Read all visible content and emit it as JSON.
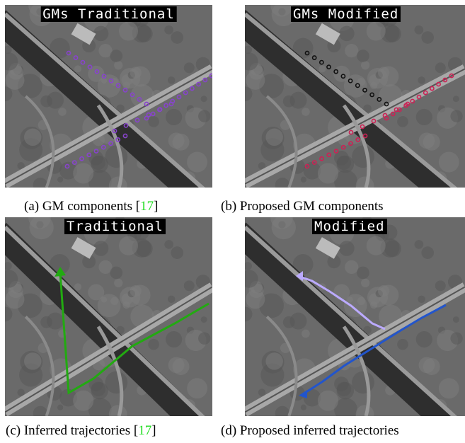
{
  "panels": [
    {
      "title": "GMs Traditional",
      "caption": {
        "text": "(a) GM components [",
        "ref": "17",
        "close": "]"
      }
    },
    {
      "title": "GMs Modified",
      "caption": {
        "text": "(b) Proposed GM components"
      }
    },
    {
      "title": "Traditional",
      "caption": {
        "text": "(c) Inferred trajectories [",
        "ref": "17",
        "close": "]"
      }
    },
    {
      "title": "Modified",
      "caption": {
        "text": "(d) Proposed inferred trajectories"
      }
    }
  ]
}
